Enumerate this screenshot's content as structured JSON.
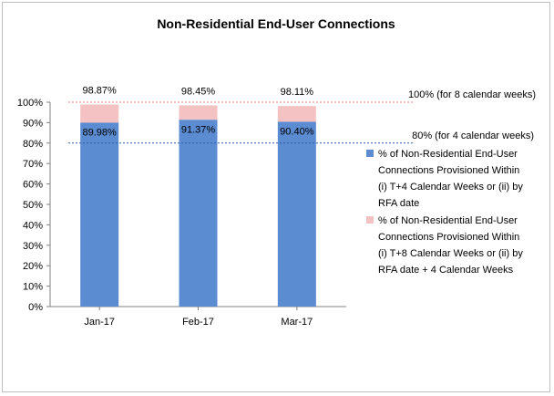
{
  "chart_data": {
    "type": "bar",
    "stacked": true,
    "title": "Non-Residential End-User Connections",
    "categories": [
      "Jan-17",
      "Feb-17",
      "Mar-17"
    ],
    "ylim": [
      0,
      100
    ],
    "yticks": [
      "0%",
      "10%",
      "20%",
      "30%",
      "40%",
      "50%",
      "60%",
      "70%",
      "80%",
      "90%",
      "100%"
    ],
    "series": [
      {
        "name": "% of Non-Residential End-User Connections Provisioned Within (i) T+4 Calendar Weeks or (ii) by RFA date",
        "legend_lines": [
          "% of Non-Residential End-User",
          "Connections Provisioned Within",
          "(i) T+4 Calendar Weeks or (ii) by",
          "RFA date"
        ],
        "values": [
          89.98,
          91.37,
          90.4
        ],
        "labels": [
          "89.98%",
          "91.37%",
          "90.40%"
        ],
        "color": "#5b8bd1"
      },
      {
        "name": "% of Non-Residential End-User Connections Provisioned Within (i) T+8 Calendar Weeks or (ii) by RFA date + 4 Calendar Weeks",
        "legend_lines": [
          "% of Non-Residential End-User",
          "Connections Provisioned Within",
          "(i) T+8 Calendar Weeks or (ii) by",
          "RFA date + 4 Calendar Weeks"
        ],
        "totals": [
          98.87,
          98.45,
          98.11
        ],
        "labels": [
          "98.87%",
          "98.45%",
          "98.11%"
        ],
        "color": "#f4c2c2"
      }
    ],
    "reference_lines": [
      {
        "value": 100,
        "label": "100% (for 8 calendar weeks)",
        "color": "#f08080"
      },
      {
        "value": 80,
        "label": "80% (for 4 calendar weeks)",
        "color": "#2e5fa8"
      }
    ],
    "legend_position": "right"
  }
}
